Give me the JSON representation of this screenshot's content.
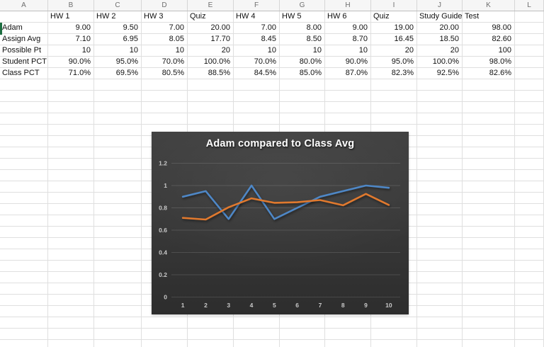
{
  "app": {
    "title": "spreadsheet with embedded chart"
  },
  "column_headers": [
    "A",
    "B",
    "C",
    "D",
    "E",
    "F",
    "G",
    "H",
    "I",
    "J",
    "K",
    "L"
  ],
  "sheet": {
    "rows": [
      [
        "",
        "HW 1",
        "HW 2",
        "HW 3",
        "Quiz",
        "HW 4",
        "HW 5",
        "HW 6",
        "Quiz",
        "Study Guide",
        "Test",
        ""
      ],
      [
        "Adam",
        "9.00",
        "9.50",
        "7.00",
        "20.00",
        "7.00",
        "8.00",
        "9.00",
        "19.00",
        "20.00",
        "98.00",
        ""
      ],
      [
        "Assign Avg",
        "7.10",
        "6.95",
        "8.05",
        "17.70",
        "8.45",
        "8.50",
        "8.70",
        "16.45",
        "18.50",
        "82.60",
        ""
      ],
      [
        "Possible Pt",
        "10",
        "10",
        "10",
        "20",
        "10",
        "10",
        "10",
        "20",
        "20",
        "100",
        ""
      ],
      [
        "Student PCT",
        "90.0%",
        "95.0%",
        "70.0%",
        "100.0%",
        "70.0%",
        "80.0%",
        "90.0%",
        "95.0%",
        "100.0%",
        "98.0%",
        ""
      ],
      [
        "Class PCT",
        "71.0%",
        "69.5%",
        "80.5%",
        "88.5%",
        "84.5%",
        "85.0%",
        "87.0%",
        "82.3%",
        "92.5%",
        "82.6%",
        ""
      ]
    ],
    "selection": {
      "column": "A",
      "row": 2,
      "indicator_color": "#1e6e41"
    }
  },
  "chart_data": {
    "type": "line",
    "title": "Adam compared to Class Avg",
    "categories": [
      "1",
      "2",
      "3",
      "4",
      "5",
      "6",
      "7",
      "8",
      "9",
      "10"
    ],
    "series": [
      {
        "name": "Student PCT",
        "color": "#4E87C6",
        "values": [
          0.9,
          0.95,
          0.7,
          1.0,
          0.7,
          0.8,
          0.9,
          0.95,
          1.0,
          0.98
        ]
      },
      {
        "name": "Class PCT",
        "color": "#E0792E",
        "values": [
          0.71,
          0.695,
          0.805,
          0.885,
          0.845,
          0.85,
          0.87,
          0.823,
          0.925,
          0.826
        ]
      }
    ],
    "xlabel": "",
    "ylabel": "",
    "ylim": [
      0,
      1.2
    ],
    "ytick_step": 0.2,
    "y_tick_labels": [
      "0",
      "0.2",
      "0.4",
      "0.6",
      "0.8",
      "1",
      "1.2"
    ],
    "grid": true,
    "legend": "none",
    "background": "dark gray gradient",
    "gridline_color": "rgba(255,255,255,0.13)",
    "tick_color": "#c9c9c9",
    "title_color": "#ffffff"
  }
}
